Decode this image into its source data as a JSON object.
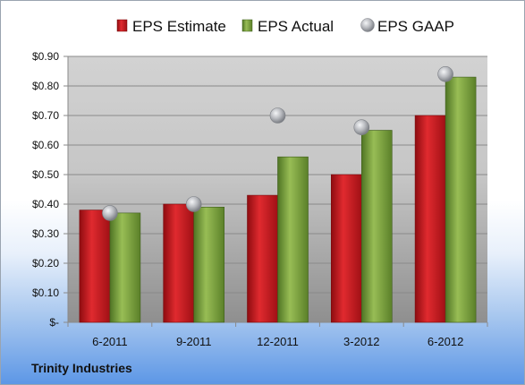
{
  "company": "Trinity Industries",
  "colors": {
    "estimate": "#c8161c",
    "actual": "#7aa23a",
    "gaap": "#b7b9be"
  },
  "chart_data": {
    "type": "bar",
    "categories": [
      "6-2011",
      "9-2011",
      "12-2011",
      "3-2012",
      "6-2012"
    ],
    "series": [
      {
        "name": "EPS Estimate",
        "type": "bar",
        "values": [
          0.38,
          0.4,
          0.43,
          0.5,
          0.7
        ]
      },
      {
        "name": "EPS Actual",
        "type": "bar",
        "values": [
          0.37,
          0.39,
          0.56,
          0.65,
          0.83
        ]
      },
      {
        "name": "EPS GAAP",
        "type": "scatter",
        "values": [
          0.37,
          0.4,
          0.7,
          0.66,
          0.84
        ]
      }
    ],
    "ylim": [
      0,
      0.9
    ],
    "yticks": [
      0,
      0.1,
      0.2,
      0.3,
      0.4,
      0.5,
      0.6,
      0.7,
      0.8,
      0.9
    ],
    "ytick_labels": [
      "$-",
      "$0.10",
      "$0.20",
      "$0.30",
      "$0.40",
      "$0.50",
      "$0.60",
      "$0.70",
      "$0.80",
      "$0.90"
    ],
    "grid": true,
    "legend": "top"
  }
}
